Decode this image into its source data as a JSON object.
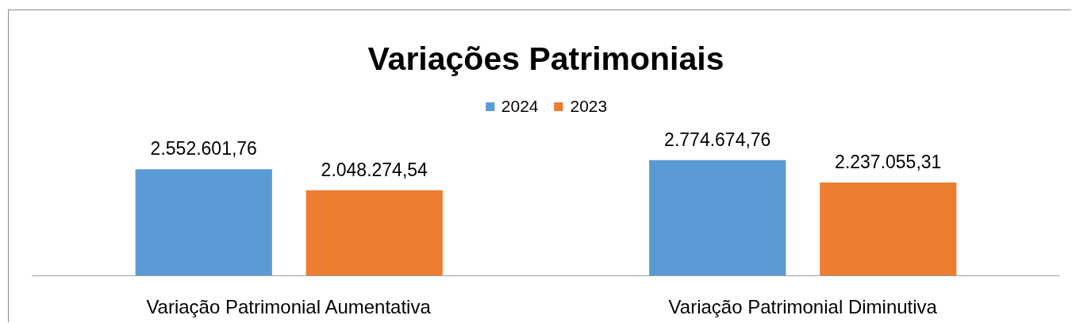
{
  "chart_data": {
    "type": "bar",
    "title": "Variações Patrimoniais",
    "categories": [
      "Variação Patrimonial Aumentativa",
      "Variação Patrimonial Diminutiva"
    ],
    "series": [
      {
        "name": "2024",
        "color": "#5b9bd5",
        "values": [
          2552601.76,
          2774674.76
        ],
        "value_labels": [
          "2.552.601,76",
          "2.774.674,76"
        ]
      },
      {
        "name": "2023",
        "color": "#ed7d31",
        "values": [
          2048274.54,
          2237055.31
        ],
        "value_labels": [
          "2.048.274,54",
          "2.237.055,31"
        ]
      }
    ],
    "legend": "top",
    "tick_labels": "x"
  }
}
